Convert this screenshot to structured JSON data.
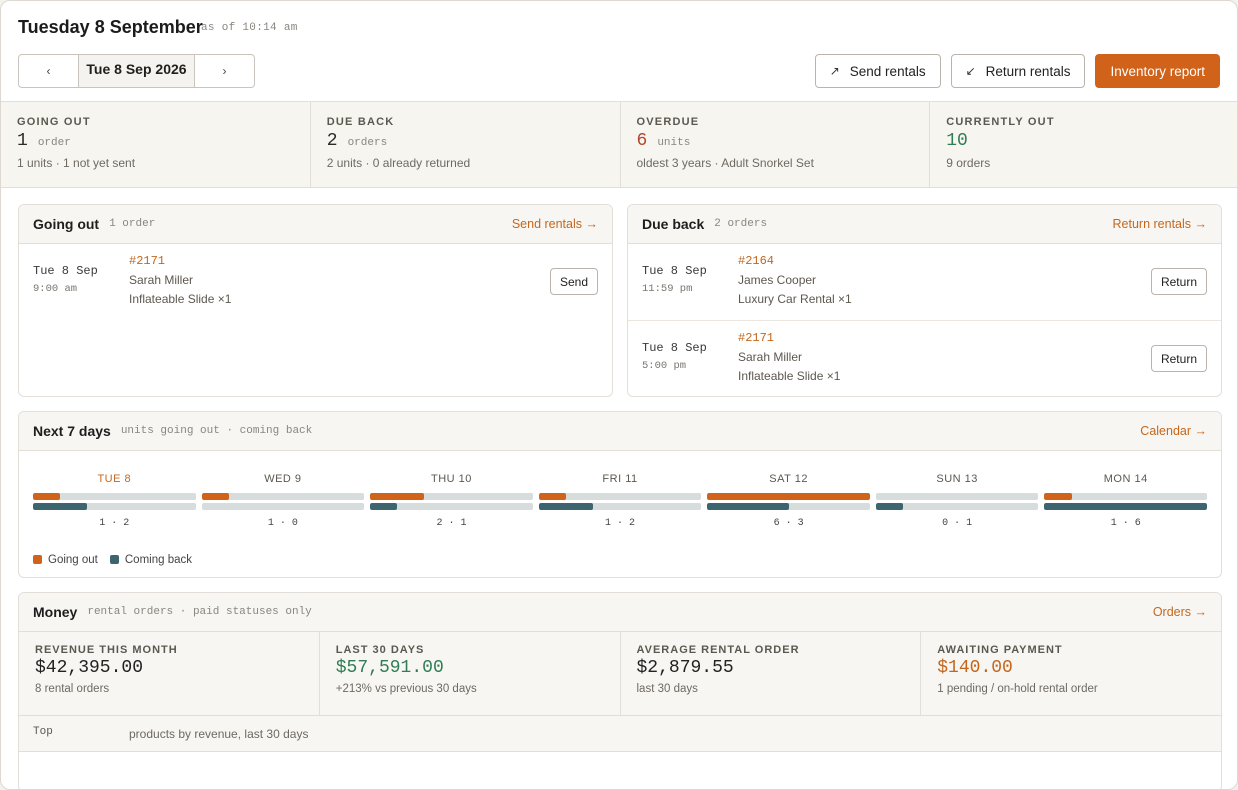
{
  "header": {
    "title": "Tuesday 8 September",
    "as_of": "as of 10:14 am",
    "prev": "‹",
    "date": "Tue 8 Sep 2026",
    "next": "›",
    "send_rentals": "Send rentals",
    "return_rentals": "Return rentals",
    "inventory_report": "Inventory report"
  },
  "stats": [
    {
      "label": "GOING OUT",
      "value": "1",
      "unit": "order",
      "sub": "1 units · 1 not yet sent",
      "color": "#2b2b2b"
    },
    {
      "label": "DUE BACK",
      "value": "2",
      "unit": "orders",
      "sub": "2 units · 0 already returned",
      "color": "#2b2b2b"
    },
    {
      "label": "OVERDUE",
      "value": "6",
      "unit": "units",
      "sub": "oldest 3 years · Adult Snorkel Set",
      "color": "#b3452b"
    },
    {
      "label": "CURRENTLY OUT",
      "value": "10",
      "unit": "",
      "sub": "9 orders",
      "color": "#2f7d55"
    }
  ],
  "going_out": {
    "title": "Going out",
    "subtitle": "1 order",
    "link": "Send rentals →",
    "orders": [
      {
        "date": "Tue 8 Sep",
        "time": "9:00 am",
        "id": "#2171",
        "customer": "Sarah Miller",
        "product": "Inflateable Slide ×1",
        "action": "Send"
      }
    ]
  },
  "due_back": {
    "title": "Due back",
    "subtitle": "2 orders",
    "link": "Return rentals →",
    "orders": [
      {
        "date": "Tue 8 Sep",
        "time": "11:59 pm",
        "id": "#2164",
        "customer": "James Cooper",
        "product": "Luxury Car Rental ×1",
        "action": "Return"
      },
      {
        "date": "Tue 8 Sep",
        "time": "5:00 pm",
        "id": "#2171",
        "customer": "Sarah Miller",
        "product": "Inflateable Slide ×1",
        "action": "Return"
      }
    ]
  },
  "next7": {
    "title": "Next 7 days",
    "subtitle": "units going out · coming back",
    "link": "Calendar →",
    "max": 6,
    "days": [
      {
        "label": "TUE 8",
        "out": 1,
        "back": 2,
        "counts": "1 · 2"
      },
      {
        "label": "WED 9",
        "out": 1,
        "back": 0,
        "counts": "1 · 0"
      },
      {
        "label": "THU 10",
        "out": 2,
        "back": 1,
        "counts": "2 · 1"
      },
      {
        "label": "FRI 11",
        "out": 1,
        "back": 2,
        "counts": "1 · 2"
      },
      {
        "label": "SAT 12",
        "out": 6,
        "back": 3,
        "counts": "6 · 3"
      },
      {
        "label": "SUN 13",
        "out": 0,
        "back": 1,
        "counts": "0 · 1"
      },
      {
        "label": "MON 14",
        "out": 1,
        "back": 6,
        "counts": "1 · 6"
      }
    ],
    "legend_out": "Going out",
    "legend_back": "Coming back",
    "color_out": "#d0621a",
    "color_back": "#3d6570"
  },
  "money": {
    "title": "Money",
    "subtitle": "rental orders · paid statuses only",
    "link": "Orders →",
    "stats": [
      {
        "label": "REVENUE THIS MONTH",
        "value": "$42,395.00",
        "sub": "8 rental orders",
        "color": "#222222"
      },
      {
        "label": "LAST 30 DAYS",
        "value": "$57,591.00",
        "sub": "+213% vs previous 30 days",
        "color": "#2f7d55"
      },
      {
        "label": "AVERAGE RENTAL ORDER",
        "value": "$2,879.55",
        "sub": "last 30 days",
        "color": "#222222"
      },
      {
        "label": "AWAITING PAYMENT",
        "value": "$140.00",
        "sub": "1 pending / on-hold rental order",
        "color": "#c4671d"
      }
    ],
    "top_label": "Top",
    "top_desc": "products by revenue, last 30 days"
  }
}
